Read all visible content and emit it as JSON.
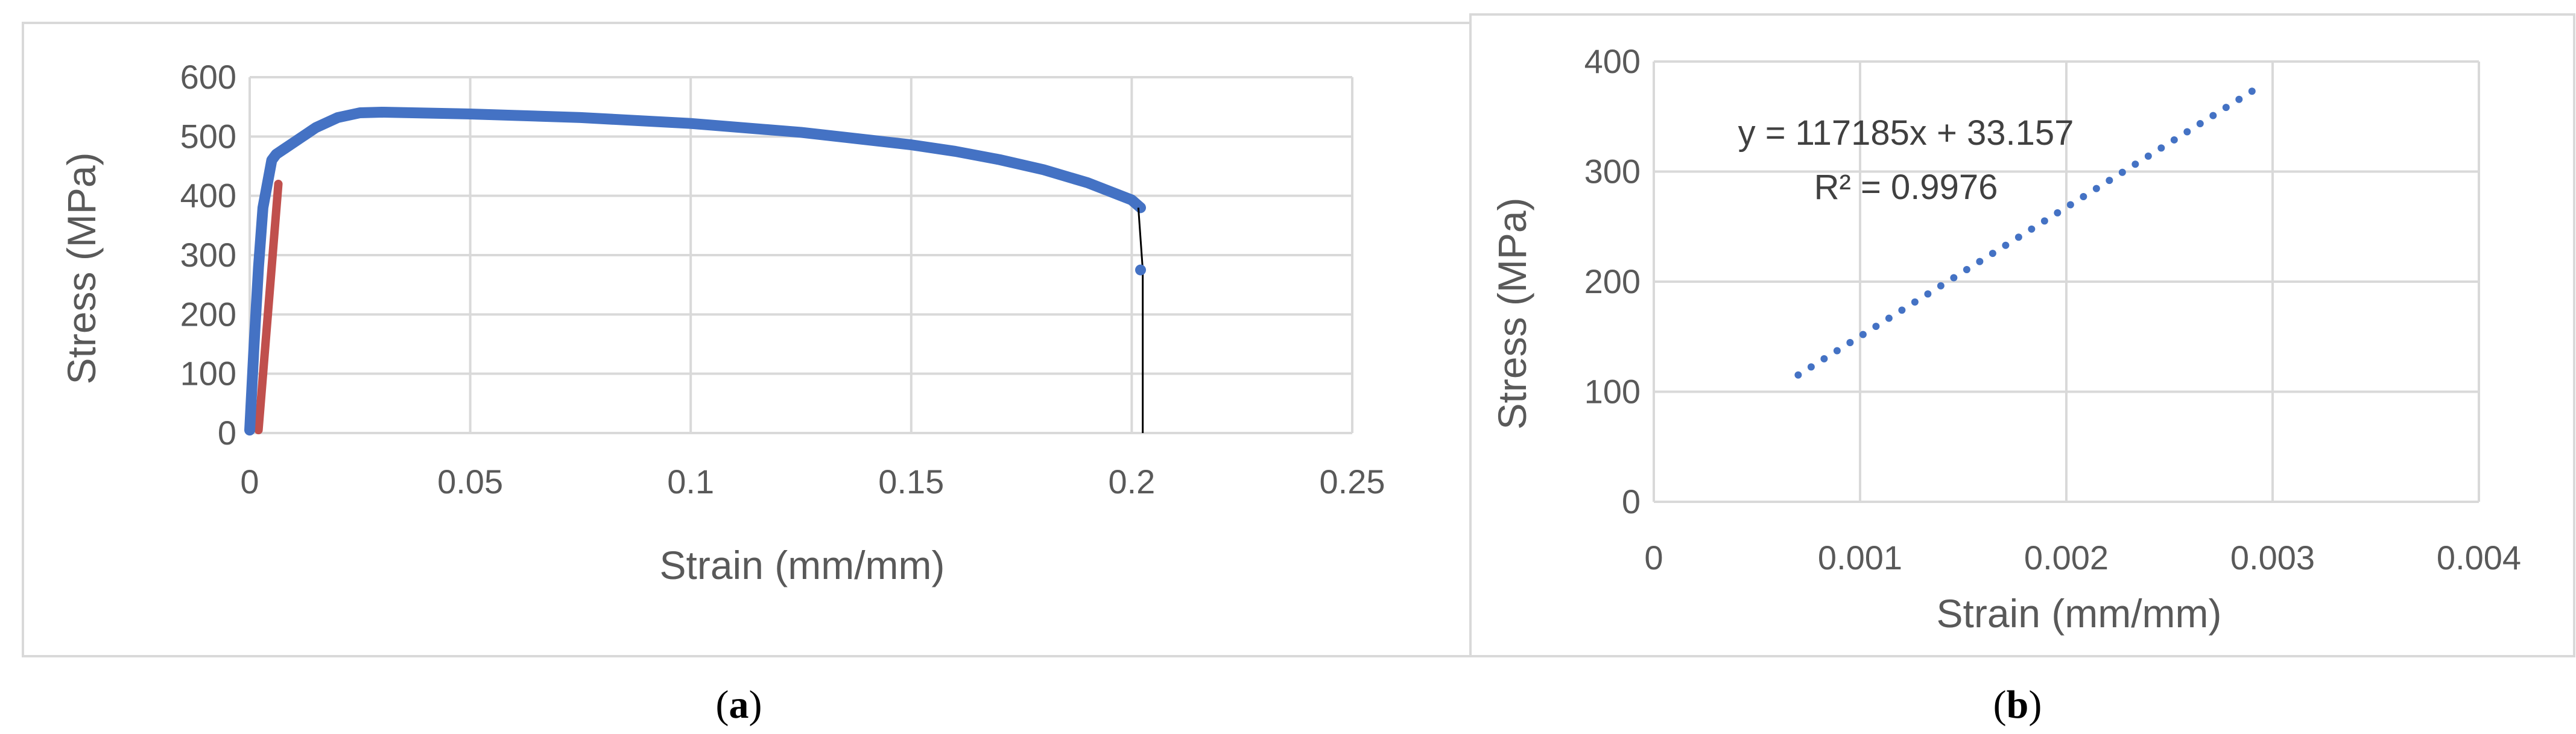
{
  "chart_data": [
    {
      "type": "line",
      "panel_label": "a",
      "xlabel": "Strain (mm/mm)",
      "ylabel": "Stress (MPa)",
      "xlim": [
        0,
        0.25
      ],
      "ylim": [
        0,
        600
      ],
      "x_ticks": [
        "0",
        "0.05",
        "0.1",
        "0.15",
        "0.2",
        "0.25"
      ],
      "y_ticks": [
        "0",
        "100",
        "200",
        "300",
        "400",
        "500",
        "600"
      ],
      "grid": true,
      "legend": "none",
      "series": [
        {
          "color": "#4472c4",
          "x": [
            0,
            0.001,
            0.002,
            0.003,
            0.004,
            0.0045,
            0.005,
            0.006,
            0.008,
            0.01,
            0.015,
            0.02,
            0.025,
            0.03,
            0.05,
            0.075,
            0.1,
            0.125,
            0.15,
            0.16,
            0.17,
            0.18,
            0.19,
            0.2,
            0.202
          ],
          "y": [
            5,
            150,
            280,
            380,
            420,
            440,
            460,
            470,
            480,
            490,
            515,
            532,
            540,
            541,
            538,
            532,
            522,
            507,
            486,
            475,
            461,
            444,
            422,
            393,
            380
          ]
        },
        {
          "color": "#4472c4",
          "x": [
            0.202
          ],
          "y": [
            275
          ]
        },
        {
          "color": "#c0504d",
          "x": [
            0.002,
            0.0065
          ],
          "y": [
            5,
            420
          ]
        },
        {
          "color": "#000000",
          "x": [
            0.2015,
            0.2025,
            0.2025
          ],
          "y": [
            380,
            275,
            0
          ]
        }
      ]
    },
    {
      "type": "scatter",
      "panel_label": "b",
      "xlabel": "Strain (mm/mm)",
      "ylabel": "Stress (MPa)",
      "xlim": [
        0,
        0.004
      ],
      "ylim": [
        0,
        400
      ],
      "x_ticks": [
        "0",
        "0.001",
        "0.002",
        "0.003",
        "0.004"
      ],
      "y_ticks": [
        "0",
        "100",
        "200",
        "300",
        "400"
      ],
      "grid": true,
      "legend": "none",
      "annotations": [
        "y = 117185x + 33.157",
        "R² = 0.9976"
      ],
      "series": [
        {
          "color": "#4472c4",
          "x_start": 0.0007,
          "x_end": 0.0029,
          "points": 36,
          "slope": 117185,
          "intercept": 33.157
        }
      ]
    }
  ]
}
